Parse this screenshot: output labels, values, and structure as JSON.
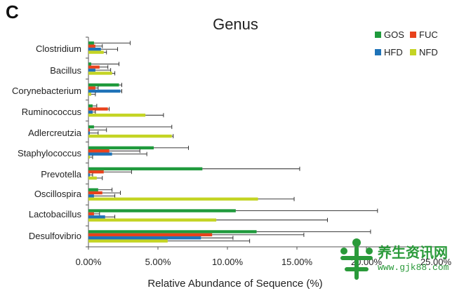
{
  "panel_label": "C",
  "chart_data": {
    "type": "bar",
    "orientation": "horizontal",
    "title": "Genus",
    "xlabel": "Relative Abundance of Sequence (%)",
    "ylabel": "",
    "xlim": [
      0,
      25
    ],
    "x_ticks": [
      "0.00%",
      "5.00%",
      "10.00%",
      "15.00%",
      "20.00%",
      "25.00%"
    ],
    "categories": [
      "Clostridium",
      "Bacillus",
      "Corynebacterium",
      "Ruminococcus",
      "Adlercreutzia",
      "Staphylococcus",
      "Prevotella",
      "Oscillospira",
      "Lactobacillus",
      "Desulfovibrio"
    ],
    "series": [
      {
        "name": "GOS",
        "color": "#1f9a3c",
        "values": [
          0.4,
          0.2,
          2.2,
          0.3,
          0.4,
          4.7,
          8.2,
          0.7,
          10.6,
          12.1
        ],
        "errors": [
          2.6,
          2.0,
          0.2,
          0.3,
          5.6,
          2.5,
          7.0,
          1.0,
          10.2,
          8.2
        ]
      },
      {
        "name": "FUC",
        "color": "#e8421c",
        "values": [
          0.5,
          0.8,
          0.5,
          1.4,
          0.1,
          1.5,
          1.1,
          1.0,
          0.4,
          8.9
        ],
        "errors": [
          0.5,
          0.6,
          0.2,
          0.1,
          1.2,
          2.2,
          2.0,
          1.3,
          0.4,
          6.6
        ]
      },
      {
        "name": "HFD",
        "color": "#1f73b8",
        "values": [
          0.9,
          0.5,
          2.3,
          0.3,
          0.1,
          1.7,
          0.1,
          0.4,
          1.2,
          8.1
        ],
        "errors": [
          1.2,
          1.1,
          0.1,
          0.2,
          0.6,
          2.5,
          0.2,
          1.5,
          0.7,
          2.3
        ]
      },
      {
        "name": "NFD",
        "color": "#c4d424",
        "values": [
          1.1,
          1.7,
          0.2,
          4.1,
          6.0,
          0.1,
          0.6,
          12.2,
          9.2,
          5.7
        ],
        "errors": [
          0.2,
          0.2,
          0.3,
          1.3,
          0.1,
          0.2,
          0.4,
          2.6,
          8.0,
          5.9
        ]
      }
    ],
    "legend_position": "top-right",
    "grid": false
  },
  "watermark": {
    "text_cn": "养生资讯网",
    "url": "www.gjk88.com"
  }
}
